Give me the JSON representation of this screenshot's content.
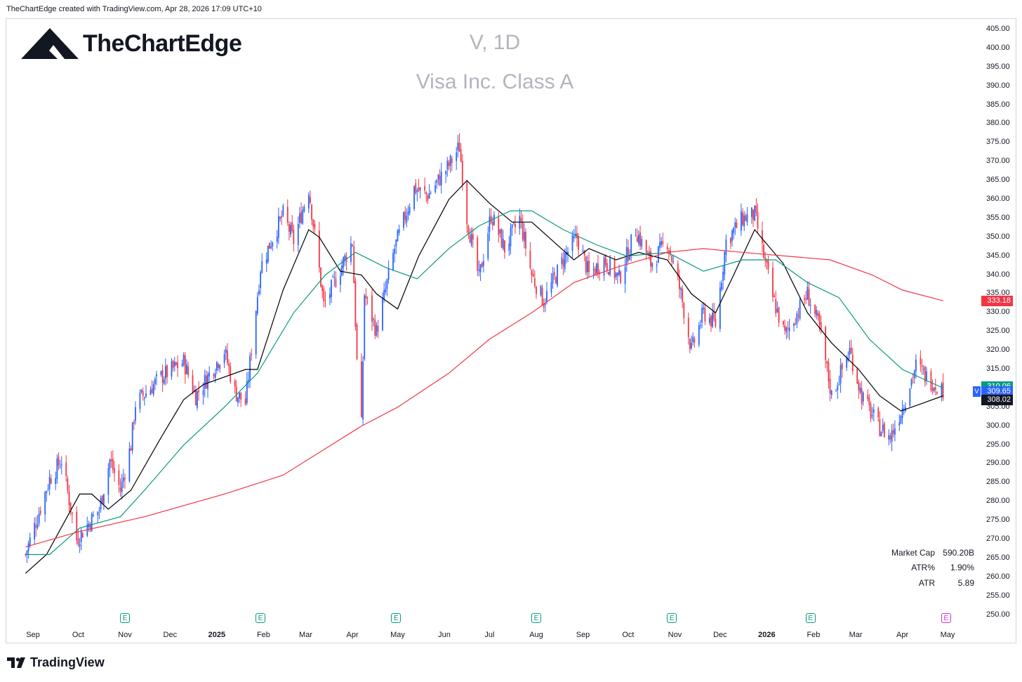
{
  "header": {
    "caption": "TheChartEdge created with TradingView.com, Apr 28, 2026 17:09 UTC+10"
  },
  "brand": {
    "name": "TheChartEdge"
  },
  "watermark": {
    "symbol_line": "V, 1D",
    "name_line": "Visa Inc. Class A"
  },
  "footer": {
    "brand": "TradingView"
  },
  "price_axis": {
    "ticks": [
      "405.00",
      "400.00",
      "395.00",
      "390.00",
      "385.00",
      "380.00",
      "375.00",
      "370.00",
      "365.00",
      "360.00",
      "355.00",
      "350.00",
      "345.00",
      "340.00",
      "335.00",
      "330.00",
      "325.00",
      "320.00",
      "315.00",
      "310.00",
      "305.00",
      "300.00",
      "295.00",
      "290.00",
      "285.00",
      "280.00",
      "275.00",
      "270.00",
      "265.00",
      "260.00",
      "255.00",
      "250.00"
    ]
  },
  "time_axis": {
    "labels": [
      "Sep",
      "Oct",
      "Nov",
      "Dec",
      "2025",
      "Feb",
      "Mar",
      "Apr",
      "May",
      "Jun",
      "Jul",
      "Aug",
      "Sep",
      "Oct",
      "Nov",
      "Dec",
      "2026",
      "Feb",
      "Mar",
      "Apr",
      "May"
    ]
  },
  "price_labels": {
    "ma200": "333.18",
    "ma50": "310.06",
    "last": "309.65",
    "ma20": "308.02",
    "ticker": "V"
  },
  "earnings_marker": {
    "glyph": "E",
    "count_past": 6,
    "count_future": 1
  },
  "stats": {
    "market_cap_label": "Market Cap",
    "market_cap_value": "590.20B",
    "atr_pct_label": "ATR%",
    "atr_pct_value": "1.90%",
    "atr_label": "ATR",
    "atr_value": "5.89"
  },
  "colors": {
    "up": "#2962ff",
    "down": "#f23645",
    "ma20": "#000000",
    "ma50": "#089981",
    "ma200": "#f23645",
    "watermark": "#b2b5be"
  },
  "chart_data": {
    "type": "candlestick",
    "title": "V, 1D",
    "subtitle": "Visa Inc. Class A",
    "timeframe": "1D",
    "ylim": [
      248,
      408
    ],
    "y_axis_side": "right",
    "x_range": [
      "2024-08-27",
      "2026-05-07"
    ],
    "grid": false,
    "price_anchors": [
      {
        "date": "2024-08-27",
        "close": 266
      },
      {
        "date": "2024-09-12",
        "close": 286
      },
      {
        "date": "2024-09-20",
        "close": 291
      },
      {
        "date": "2024-09-30",
        "close": 270
      },
      {
        "date": "2024-10-15",
        "close": 278
      },
      {
        "date": "2024-10-22",
        "close": 291
      },
      {
        "date": "2024-10-29",
        "close": 283
      },
      {
        "date": "2024-11-05",
        "close": 295
      },
      {
        "date": "2024-11-08",
        "close": 306
      },
      {
        "date": "2024-11-25",
        "close": 313
      },
      {
        "date": "2024-12-10",
        "close": 317
      },
      {
        "date": "2024-12-18",
        "close": 308
      },
      {
        "date": "2025-01-06",
        "close": 320
      },
      {
        "date": "2025-01-13",
        "close": 309
      },
      {
        "date": "2025-01-20",
        "close": 306
      },
      {
        "date": "2025-01-30",
        "close": 342
      },
      {
        "date": "2025-02-06",
        "close": 349
      },
      {
        "date": "2025-02-14",
        "close": 356
      },
      {
        "date": "2025-02-21",
        "close": 349
      },
      {
        "date": "2025-03-03",
        "close": 363
      },
      {
        "date": "2025-03-13",
        "close": 332
      },
      {
        "date": "2025-03-20",
        "close": 338
      },
      {
        "date": "2025-04-01",
        "close": 349
      },
      {
        "date": "2025-04-04",
        "close": 317
      },
      {
        "date": "2025-04-07",
        "close": 300
      },
      {
        "date": "2025-04-09",
        "close": 335
      },
      {
        "date": "2025-04-17",
        "close": 325
      },
      {
        "date": "2025-04-29",
        "close": 347
      },
      {
        "date": "2025-05-12",
        "close": 363
      },
      {
        "date": "2025-05-21",
        "close": 361
      },
      {
        "date": "2025-06-04",
        "close": 369
      },
      {
        "date": "2025-06-11",
        "close": 374
      },
      {
        "date": "2025-06-16",
        "close": 355
      },
      {
        "date": "2025-06-24",
        "close": 339
      },
      {
        "date": "2025-07-02",
        "close": 356
      },
      {
        "date": "2025-07-11",
        "close": 347
      },
      {
        "date": "2025-07-21",
        "close": 355
      },
      {
        "date": "2025-07-29",
        "close": 340
      },
      {
        "date": "2025-08-06",
        "close": 333
      },
      {
        "date": "2025-08-20",
        "close": 345
      },
      {
        "date": "2025-08-28",
        "close": 350
      },
      {
        "date": "2025-09-05",
        "close": 340
      },
      {
        "date": "2025-09-15",
        "close": 344
      },
      {
        "date": "2025-09-25",
        "close": 339
      },
      {
        "date": "2025-10-06",
        "close": 352
      },
      {
        "date": "2025-10-16",
        "close": 343
      },
      {
        "date": "2025-10-27",
        "close": 349
      },
      {
        "date": "2025-11-05",
        "close": 335
      },
      {
        "date": "2025-11-12",
        "close": 320
      },
      {
        "date": "2025-11-20",
        "close": 330
      },
      {
        "date": "2025-11-28",
        "close": 327
      },
      {
        "date": "2025-12-05",
        "close": 349
      },
      {
        "date": "2025-12-16",
        "close": 355
      },
      {
        "date": "2025-12-24",
        "close": 356
      },
      {
        "date": "2026-01-05",
        "close": 334
      },
      {
        "date": "2026-01-13",
        "close": 324
      },
      {
        "date": "2026-01-28",
        "close": 335
      },
      {
        "date": "2026-02-05",
        "close": 326
      },
      {
        "date": "2026-02-13",
        "close": 308
      },
      {
        "date": "2026-02-25",
        "close": 320
      },
      {
        "date": "2026-03-05",
        "close": 308
      },
      {
        "date": "2026-03-16",
        "close": 300
      },
      {
        "date": "2026-03-24",
        "close": 297
      },
      {
        "date": "2026-04-01",
        "close": 305
      },
      {
        "date": "2026-04-10",
        "close": 316
      },
      {
        "date": "2026-04-17",
        "close": 313
      },
      {
        "date": "2026-04-28",
        "close": 309.65
      }
    ],
    "series": [
      {
        "name": "SMA 20",
        "color": "#000000",
        "points": [
          {
            "date": "2024-08-27",
            "value": 261
          },
          {
            "date": "2024-09-10",
            "value": 266
          },
          {
            "date": "2024-10-02",
            "value": 282
          },
          {
            "date": "2024-10-10",
            "value": 282
          },
          {
            "date": "2024-10-21",
            "value": 278
          },
          {
            "date": "2024-11-05",
            "value": 283
          },
          {
            "date": "2024-11-25",
            "value": 297
          },
          {
            "date": "2024-12-10",
            "value": 307
          },
          {
            "date": "2024-12-23",
            "value": 311
          },
          {
            "date": "2025-01-20",
            "value": 315
          },
          {
            "date": "2025-01-28",
            "value": 315
          },
          {
            "date": "2025-02-14",
            "value": 336
          },
          {
            "date": "2025-03-03",
            "value": 352
          },
          {
            "date": "2025-03-10",
            "value": 350
          },
          {
            "date": "2025-03-24",
            "value": 341
          },
          {
            "date": "2025-04-07",
            "value": 340
          },
          {
            "date": "2025-04-17",
            "value": 335
          },
          {
            "date": "2025-05-01",
            "value": 331
          },
          {
            "date": "2025-05-15",
            "value": 345
          },
          {
            "date": "2025-06-04",
            "value": 360
          },
          {
            "date": "2025-06-16",
            "value": 365
          },
          {
            "date": "2025-07-01",
            "value": 359
          },
          {
            "date": "2025-07-16",
            "value": 354
          },
          {
            "date": "2025-07-29",
            "value": 354
          },
          {
            "date": "2025-08-12",
            "value": 349
          },
          {
            "date": "2025-08-26",
            "value": 344
          },
          {
            "date": "2025-09-05",
            "value": 347
          },
          {
            "date": "2025-09-23",
            "value": 344
          },
          {
            "date": "2025-10-08",
            "value": 346
          },
          {
            "date": "2025-10-27",
            "value": 344
          },
          {
            "date": "2025-11-12",
            "value": 335
          },
          {
            "date": "2025-11-28",
            "value": 330
          },
          {
            "date": "2025-12-10",
            "value": 340
          },
          {
            "date": "2025-12-24",
            "value": 352
          },
          {
            "date": "2026-01-12",
            "value": 343
          },
          {
            "date": "2026-01-28",
            "value": 330
          },
          {
            "date": "2026-02-13",
            "value": 322
          },
          {
            "date": "2026-03-03",
            "value": 315
          },
          {
            "date": "2026-03-17",
            "value": 308
          },
          {
            "date": "2026-03-31",
            "value": 304
          },
          {
            "date": "2026-04-14",
            "value": 306
          },
          {
            "date": "2026-04-28",
            "value": 308.02
          }
        ]
      },
      {
        "name": "SMA 50",
        "color": "#089981",
        "points": [
          {
            "date": "2024-08-27",
            "value": 266
          },
          {
            "date": "2024-09-12",
            "value": 266
          },
          {
            "date": "2024-10-02",
            "value": 273
          },
          {
            "date": "2024-10-29",
            "value": 276
          },
          {
            "date": "2024-11-14",
            "value": 283
          },
          {
            "date": "2024-12-10",
            "value": 295
          },
          {
            "date": "2025-01-06",
            "value": 305
          },
          {
            "date": "2025-01-28",
            "value": 314
          },
          {
            "date": "2025-02-21",
            "value": 330
          },
          {
            "date": "2025-03-14",
            "value": 340
          },
          {
            "date": "2025-04-03",
            "value": 346
          },
          {
            "date": "2025-04-23",
            "value": 342
          },
          {
            "date": "2025-05-14",
            "value": 339
          },
          {
            "date": "2025-06-04",
            "value": 347
          },
          {
            "date": "2025-06-24",
            "value": 353
          },
          {
            "date": "2025-07-15",
            "value": 357
          },
          {
            "date": "2025-07-29",
            "value": 357
          },
          {
            "date": "2025-08-19",
            "value": 352
          },
          {
            "date": "2025-09-10",
            "value": 348
          },
          {
            "date": "2025-09-30",
            "value": 345
          },
          {
            "date": "2025-10-27",
            "value": 346
          },
          {
            "date": "2025-11-20",
            "value": 341
          },
          {
            "date": "2025-12-16",
            "value": 344
          },
          {
            "date": "2026-01-07",
            "value": 344
          },
          {
            "date": "2026-01-28",
            "value": 338
          },
          {
            "date": "2026-02-18",
            "value": 334
          },
          {
            "date": "2026-03-10",
            "value": 323
          },
          {
            "date": "2026-04-01",
            "value": 315
          },
          {
            "date": "2026-04-28",
            "value": 310.06
          }
        ]
      },
      {
        "name": "SMA 200",
        "color": "#f23645",
        "points": [
          {
            "date": "2024-08-27",
            "value": 268
          },
          {
            "date": "2024-10-01",
            "value": 272
          },
          {
            "date": "2024-11-14",
            "value": 276
          },
          {
            "date": "2025-01-06",
            "value": 282
          },
          {
            "date": "2025-02-14",
            "value": 287
          },
          {
            "date": "2025-03-14",
            "value": 294
          },
          {
            "date": "2025-04-07",
            "value": 300
          },
          {
            "date": "2025-05-01",
            "value": 305
          },
          {
            "date": "2025-06-04",
            "value": 314
          },
          {
            "date": "2025-07-01",
            "value": 323
          },
          {
            "date": "2025-07-29",
            "value": 330
          },
          {
            "date": "2025-08-26",
            "value": 338
          },
          {
            "date": "2025-09-23",
            "value": 342
          },
          {
            "date": "2025-10-27",
            "value": 346
          },
          {
            "date": "2025-11-20",
            "value": 347
          },
          {
            "date": "2025-12-16",
            "value": 346
          },
          {
            "date": "2026-01-14",
            "value": 345
          },
          {
            "date": "2026-02-12",
            "value": 344
          },
          {
            "date": "2026-03-12",
            "value": 340
          },
          {
            "date": "2026-04-01",
            "value": 336
          },
          {
            "date": "2026-04-28",
            "value": 333.18
          }
        ]
      }
    ],
    "earnings_dates": [
      "2024-11-01",
      "2025-01-30",
      "2025-04-30",
      "2025-08-01",
      "2025-10-30",
      "2026-01-30"
    ],
    "upcoming_earnings_date": "2026-04-30"
  }
}
